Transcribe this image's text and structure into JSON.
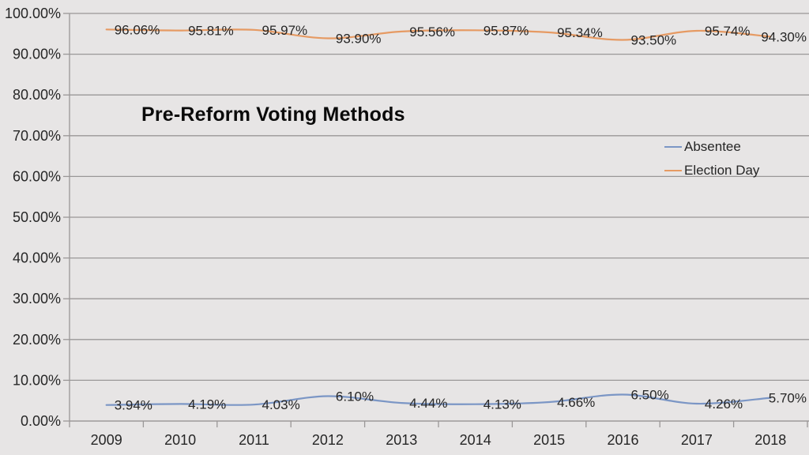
{
  "chart_data": {
    "type": "line",
    "title": "Pre-Reform Voting Methods",
    "categories": [
      "2009",
      "2010",
      "2011",
      "2012",
      "2013",
      "2014",
      "2015",
      "2016",
      "2017",
      "2018"
    ],
    "series": [
      {
        "name": "Absentee",
        "color": "#7b96c5",
        "values": [
          3.94,
          4.19,
          4.03,
          6.1,
          4.44,
          4.13,
          4.66,
          6.5,
          4.26,
          5.7
        ],
        "point_labels": [
          "3.94%",
          "4.19%",
          "4.03%",
          "6.10%",
          "4.44%",
          "4.13%",
          "4.66%",
          "6.50%",
          "4.26%",
          "5.70%"
        ]
      },
      {
        "name": "Election Day",
        "color": "#e69a63",
        "values": [
          96.06,
          95.81,
          95.97,
          93.9,
          95.56,
          95.87,
          95.34,
          93.5,
          95.74,
          94.3
        ],
        "point_labels": [
          "96.06%",
          "95.81%",
          "95.97%",
          "93.90%",
          "95.56%",
          "95.87%",
          "95.34%",
          "93.50%",
          "95.74%",
          "94.30%"
        ]
      }
    ],
    "xlabel": "",
    "ylabel": "",
    "ylim": [
      0,
      100
    ],
    "ytick_labels": [
      "0.00%",
      "10.00%",
      "20.00%",
      "30.00%",
      "40.00%",
      "50.00%",
      "60.00%",
      "70.00%",
      "80.00%",
      "90.00%",
      "100.00%"
    ],
    "grid": true,
    "smoothed_lines": true,
    "legend_position": "middle-right",
    "legend_entries": [
      "Absentee",
      "Election Day"
    ]
  },
  "colors": {
    "background": "#e7e5e5",
    "gridline": "#9a9797",
    "axis": "#9a9797",
    "tick_label": "#262626",
    "data_label": "#262626",
    "title": "#0a0a0a"
  }
}
